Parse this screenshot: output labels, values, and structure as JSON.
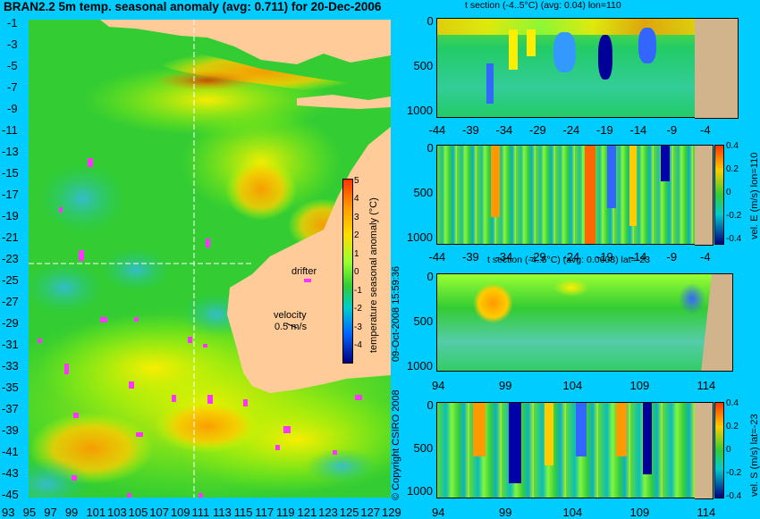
{
  "title": "BRAN2.2 5m temp. seasonal anomaly (avg: 0.711) for 20-Dec-2006",
  "colors": {
    "page_bg": "#00ccff",
    "land": "#ffcc99",
    "section_land": "#d2b48c",
    "drifter": "#ff33ff"
  },
  "map": {
    "lat_ticks": [
      "-1",
      "-3",
      "-5",
      "-7",
      "-9",
      "-11",
      "-13",
      "-15",
      "-17",
      "-19",
      "-21",
      "-23",
      "-25",
      "-27",
      "-29",
      "-31",
      "-33",
      "-35",
      "-37",
      "-39",
      "-41",
      "-43",
      "-45"
    ],
    "lon_ticks": [
      "93",
      "95",
      "97",
      "99",
      "101",
      "103",
      "105",
      "107",
      "109",
      "111",
      "113",
      "115",
      "117",
      "119",
      "121",
      "123",
      "125",
      "127",
      "129"
    ],
    "crosshair": {
      "lon": 110,
      "lat": -23
    },
    "drifter_label": "drifter",
    "velocity_label": "velocity",
    "velocity_scale": "0.5 m/s",
    "colorbar": {
      "label": "temperature seasonal anomaly (°C)",
      "ticks": [
        "5",
        "4",
        "3",
        "2",
        "1",
        "0",
        "-1",
        "-2",
        "-3",
        "-4"
      ]
    }
  },
  "sections": [
    {
      "title": "t section (-4..5°C) (avg: 0.04) lon=110",
      "y_ticks": [
        "0",
        "500",
        "1000"
      ],
      "x_ticks": [
        "-44",
        "-39",
        "-34",
        "-29",
        "-24",
        "-19",
        "-14",
        "-9",
        "-4"
      ]
    },
    {
      "title": "",
      "y_ticks": [
        "0",
        "500",
        "1000"
      ],
      "x_ticks": [
        "-44",
        "-39",
        "-34",
        "-29",
        "-24",
        "-19",
        "-14",
        "-9",
        "-4"
      ],
      "colorbar_label": "vel. E (m/s) lon=110",
      "colorbar_ticks": [
        "0.4",
        "0.2",
        "0",
        "-0.2",
        "-0.4"
      ]
    },
    {
      "title": "t section (-4..5°C) (avg: 0.0608) lat=-23",
      "y_ticks": [
        "0",
        "500",
        "1000"
      ],
      "x_ticks": [
        "94",
        "99",
        "104",
        "109",
        "114"
      ]
    },
    {
      "title": "",
      "y_ticks": [
        "0",
        "500",
        "1000"
      ],
      "x_ticks": [
        "94",
        "99",
        "104",
        "109",
        "114"
      ],
      "colorbar_label": "vel. S (m/s) lat=-23",
      "colorbar_ticks": [
        "0.4",
        "0.2",
        "0",
        "-0.2",
        "-0.4"
      ]
    }
  ],
  "credits": {
    "timestamp": "09-Oct-2008 15:59:36",
    "copyright": "© Copyright CSIRO 2008"
  }
}
